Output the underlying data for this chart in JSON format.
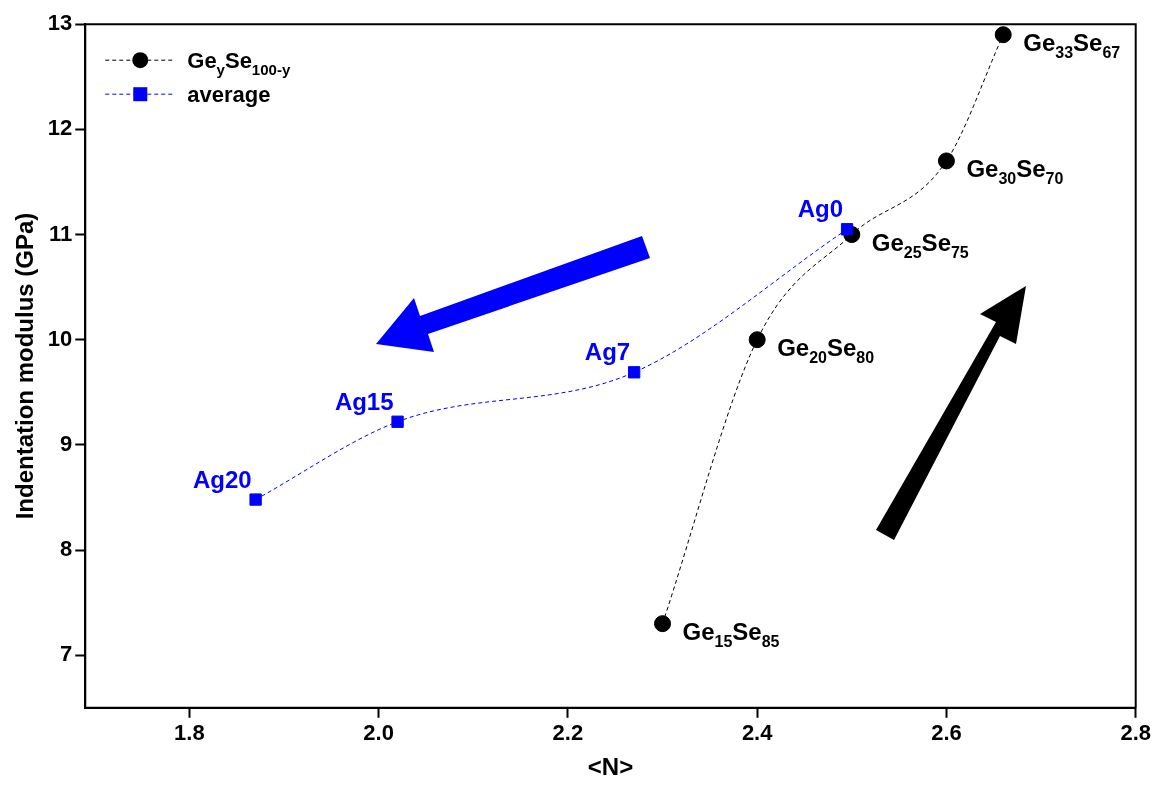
{
  "chart_data": {
    "type": "line",
    "xlabel": "<N>",
    "ylabel": "Indentation modulus (GPa)",
    "xlim": [
      1.69,
      2.8
    ],
    "xticks": [
      1.8,
      {
        "value": 2,
        "label": "2.0"
      },
      2.2,
      2.4,
      2.6,
      2.8
    ],
    "ylim": [
      6.5,
      13
    ],
    "yticks": [
      7,
      8,
      9,
      10,
      11,
      12,
      13
    ],
    "series": [
      {
        "name": "Ge$_{y}$Se$_{100-y}$",
        "color": "#000000",
        "marker": "circle",
        "line_style": "dashed",
        "x": [
          2.3,
          2.4,
          2.5,
          2.6,
          2.66
        ],
        "values": [
          7.3,
          10.0,
          11.0,
          11.7,
          12.9
        ]
      },
      {
        "name": "average",
        "color": "#0000ff",
        "marker": "square",
        "line_style": "dashed",
        "x": [
          1.87,
          2.02,
          2.27,
          2.495
        ],
        "values": [
          8.48,
          9.22,
          9.69,
          11.05
        ]
      }
    ],
    "annotations": [
      {
        "text": "Ge$_{15}$Se$_{85}$",
        "x": 2.3,
        "y": 7.3
      },
      {
        "text": "Ge$_{20}$Se$_{80}$",
        "x": 2.4,
        "y": 10.0
      },
      {
        "text": "Ge$_{25}$Se$_{75}$",
        "x": 2.5,
        "y": 11.0
      },
      {
        "text": "Ge$_{30}$Se$_{70}$",
        "x": 2.6,
        "y": 11.7
      },
      {
        "text": "Ge$_{33}$Se$_{67}$",
        "x": 2.66,
        "y": 12.9
      },
      {
        "text": "Ag20",
        "x": 1.87,
        "y": 8.48
      },
      {
        "text": "Ag15",
        "x": 2.02,
        "y": 9.22
      },
      {
        "text": "Ag7",
        "x": 2.27,
        "y": 9.69
      },
      {
        "text": "Ag0",
        "x": 2.495,
        "y": 11.05
      }
    ],
    "legend": "top left",
    "grid": false
  }
}
